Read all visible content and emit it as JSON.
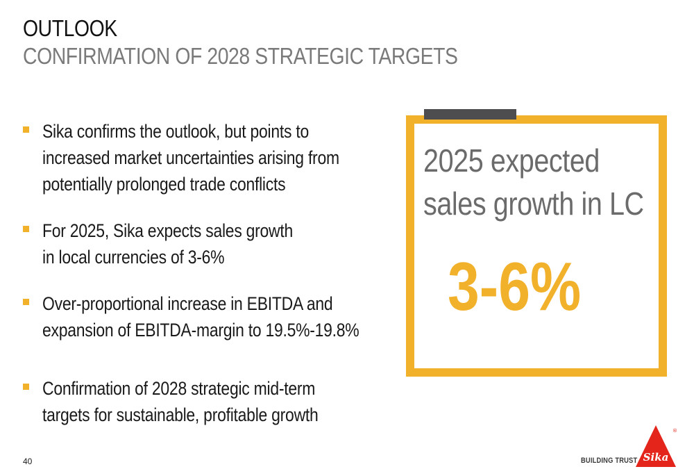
{
  "header": {
    "title": "OUTLOOK",
    "subtitle": "CONFIRMATION OF 2028 STRATEGIC TARGETS"
  },
  "bullets": [
    {
      "lines": [
        "Sika confirms the outlook, but points to",
        "increased market uncertainties arising from",
        "potentially prolonged trade conflicts"
      ]
    },
    {
      "lines": [
        "For 2025, Sika expects sales growth",
        "in local currencies of 3-6%"
      ]
    },
    {
      "lines": [
        "Over-proportional increase in EBITDA and",
        "expansion of EBITDA-margin to 19.5%-19.8%"
      ]
    },
    {
      "lines": [
        "Confirmation of 2028 strategic mid-term",
        "targets for sustainable, profitable growth"
      ]
    }
  ],
  "callout": {
    "line1": "2025 expected",
    "line2": "sales growth in LC",
    "value": "3-6%"
  },
  "footer": {
    "page_number": "40",
    "tagline": "BUILDING TRUST",
    "logo_text": "Sika",
    "registered_mark": "®"
  },
  "colors": {
    "accent": "#f2b12b",
    "tab": "#4d4d4f",
    "logo_red": "#e4251b"
  }
}
